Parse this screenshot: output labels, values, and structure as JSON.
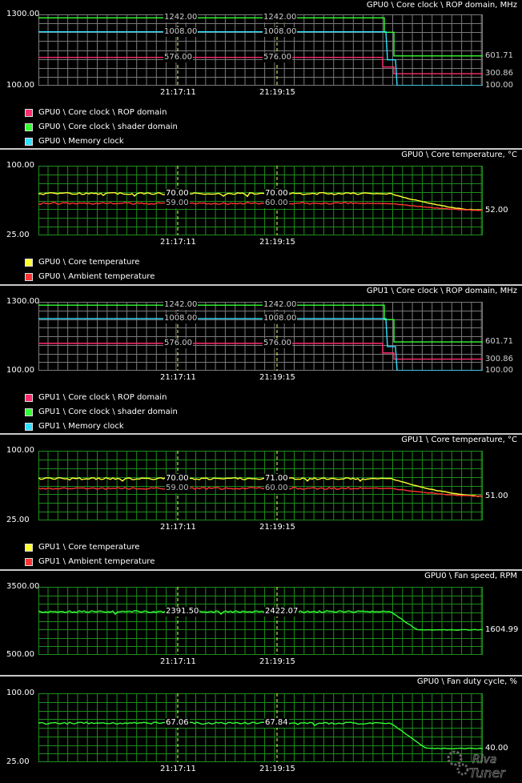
{
  "colors": {
    "grid_green": "#1e8c1e",
    "grid_gray": "#7a7a7a",
    "rop": "#ff2d6e",
    "shader": "#33ff33",
    "memory": "#33e0ff",
    "core_temp": "#ffff33",
    "ambient": "#ff3333",
    "fan": "#33ff33",
    "marker": "#ffff66"
  },
  "time_labels": [
    "21:17:11",
    "21:19:15"
  ],
  "panels": [
    {
      "id": "gpu0-clock",
      "title": "GPU0 \\ Core clock \\ ROP domain, MHz",
      "ymax": "1300.00",
      "ymin": "100.00",
      "ymax_num": 1300,
      "ymin_num": 100,
      "grid": "gray",
      "value_labels": [
        {
          "text": "1242.00",
          "t": 0,
          "series": 1
        },
        {
          "text": "1242.00",
          "t": 1,
          "series": 1
        },
        {
          "text": "1008.00",
          "t": 0,
          "series": 2
        },
        {
          "text": "1008.00",
          "t": 1,
          "series": 2
        },
        {
          "text": "576.00",
          "t": 0,
          "series": 0
        },
        {
          "text": "576.00",
          "t": 1,
          "series": 0
        }
      ],
      "right_labels": [
        {
          "text": "601.71",
          "series": 1
        },
        {
          "text": "300.86",
          "series": 0
        },
        {
          "text": "100.00",
          "series": 2
        }
      ],
      "series": [
        {
          "key": "rop",
          "start": 576,
          "end": 300.86
        },
        {
          "key": "shader",
          "start": 1242,
          "end": 601.71
        },
        {
          "key": "memory",
          "start": 1008,
          "end": 100
        }
      ],
      "legend": [
        {
          "label": "GPU0 \\ Core clock \\ ROP domain",
          "color_key": "rop"
        },
        {
          "label": "GPU0 \\ Core clock \\ shader domain",
          "color_key": "shader"
        },
        {
          "label": "GPU0 \\ Memory clock",
          "color_key": "memory"
        }
      ]
    },
    {
      "id": "gpu0-temp",
      "title": "GPU0 \\ Core temperature, °C",
      "ymax": "100.00",
      "ymin": "25.00",
      "ymax_num": 100,
      "ymin_num": 25,
      "grid": "green",
      "value_labels": [
        {
          "text": "70.00",
          "t": 0,
          "series": 0
        },
        {
          "text": "70.00",
          "t": 1,
          "series": 0
        },
        {
          "text": "59.00",
          "t": 0,
          "series": 1
        },
        {
          "text": "60.00",
          "t": 1,
          "series": 1
        }
      ],
      "right_labels": [
        {
          "text": "52.00",
          "series": 0
        }
      ],
      "series": [
        {
          "key": "core_temp",
          "start": 70,
          "end": 52
        },
        {
          "key": "ambient",
          "start": 59.5,
          "end": 52
        }
      ],
      "legend": [
        {
          "label": "GPU0 \\ Core temperature",
          "color_key": "core_temp"
        },
        {
          "label": "GPU0 \\ Ambient temperature",
          "color_key": "ambient"
        }
      ]
    },
    {
      "id": "gpu1-clock",
      "title": "GPU1 \\ Core clock \\ ROP domain, MHz",
      "ymax": "1300.00",
      "ymin": "100.00",
      "ymax_num": 1300,
      "ymin_num": 100,
      "grid": "gray",
      "value_labels": [
        {
          "text": "1242.00",
          "t": 0,
          "series": 1
        },
        {
          "text": "1242.00",
          "t": 1,
          "series": 1
        },
        {
          "text": "1008.00",
          "t": 0,
          "series": 2
        },
        {
          "text": "1008.00",
          "t": 1,
          "series": 2
        },
        {
          "text": "576.00",
          "t": 0,
          "series": 0
        },
        {
          "text": "576.00",
          "t": 1,
          "series": 0
        }
      ],
      "right_labels": [
        {
          "text": "601.71",
          "series": 1
        },
        {
          "text": "300.86",
          "series": 0
        },
        {
          "text": "100.00",
          "series": 2
        }
      ],
      "series": [
        {
          "key": "rop",
          "start": 576,
          "end": 300.86
        },
        {
          "key": "shader",
          "start": 1242,
          "end": 601.71
        },
        {
          "key": "memory",
          "start": 1008,
          "end": 100
        }
      ],
      "legend": [
        {
          "label": "GPU1 \\ Core clock \\ ROP domain",
          "color_key": "rop"
        },
        {
          "label": "GPU1 \\ Core clock \\ shader domain",
          "color_key": "shader"
        },
        {
          "label": "GPU1 \\ Memory clock",
          "color_key": "memory"
        }
      ]
    },
    {
      "id": "gpu1-temp",
      "title": "GPU1 \\ Core temperature, °C",
      "ymax": "100.00",
      "ymin": "25.00",
      "ymax_num": 100,
      "ymin_num": 25,
      "grid": "green",
      "value_labels": [
        {
          "text": "70.00",
          "t": 0,
          "series": 0
        },
        {
          "text": "71.00",
          "t": 1,
          "series": 0
        },
        {
          "text": "59.00",
          "t": 0,
          "series": 1
        },
        {
          "text": "60.00",
          "t": 1,
          "series": 1
        }
      ],
      "right_labels": [
        {
          "text": "51.00",
          "series": 0
        }
      ],
      "series": [
        {
          "key": "core_temp",
          "start": 70,
          "end": 51
        },
        {
          "key": "ambient",
          "start": 59.5,
          "end": 51
        }
      ],
      "legend": [
        {
          "label": "GPU1 \\ Core temperature",
          "color_key": "core_temp"
        },
        {
          "label": "GPU1 \\ Ambient temperature",
          "color_key": "ambient"
        }
      ]
    },
    {
      "id": "fan-speed",
      "title": "GPU0 \\ Fan speed, RPM",
      "ymax": "3500.00",
      "ymin": "500.00",
      "ymax_num": 3500,
      "ymin_num": 500,
      "grid": "green",
      "value_labels": [
        {
          "text": "2391.50",
          "t": 0,
          "series": 0
        },
        {
          "text": "2422.07",
          "t": 1,
          "series": 0
        }
      ],
      "right_labels": [
        {
          "text": "1604.99",
          "series": 0
        }
      ],
      "series": [
        {
          "key": "fan",
          "start": 2410,
          "end": 1604.99
        }
      ],
      "legend": []
    },
    {
      "id": "fan-duty",
      "title": "GPU0 \\ Fan duty cycle, %",
      "ymax": "100.00",
      "ymin": "25.00",
      "ymax_num": 100,
      "ymin_num": 25,
      "grid": "green",
      "value_labels": [
        {
          "text": "67.06",
          "t": 0,
          "series": 0
        },
        {
          "text": "67.84",
          "t": 1,
          "series": 0
        }
      ],
      "right_labels": [
        {
          "text": "40.00",
          "series": 0
        }
      ],
      "series": [
        {
          "key": "fan",
          "start": 67.5,
          "end": 40
        }
      ],
      "legend": []
    }
  ],
  "logo_text": "Riva Tuner"
}
